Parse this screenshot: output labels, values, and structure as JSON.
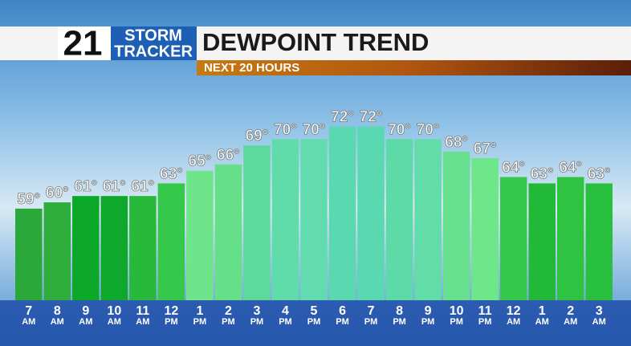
{
  "header": {
    "logo_number": "21",
    "logo_line1": "STORM",
    "logo_line2": "TRACKER"
  },
  "chart_data": {
    "type": "bar",
    "title": "DEWPOINT TREND",
    "subtitle": "NEXT 20 HOURS",
    "categories": [
      "7 AM",
      "8 AM",
      "9 AM",
      "10 AM",
      "11 AM",
      "12 PM",
      "1 PM",
      "2 PM",
      "3 PM",
      "4 PM",
      "5 PM",
      "6 PM",
      "7 PM",
      "8 PM",
      "9 PM",
      "10 PM",
      "11 PM",
      "12 AM",
      "1 AM",
      "2 AM",
      "3 AM"
    ],
    "values": [
      59,
      60,
      61,
      61,
      61,
      63,
      65,
      66,
      69,
      70,
      70,
      72,
      72,
      70,
      70,
      68,
      67,
      64,
      63,
      64,
      63
    ],
    "value_labels": [
      "59°",
      "60°",
      "61°",
      "61°",
      "61°",
      "63°",
      "65°",
      "66°",
      "69°",
      "70°",
      "70°",
      "72°",
      "72°",
      "70°",
      "70°",
      "68°",
      "67°",
      "64°",
      "63°",
      "64°",
      "63°"
    ],
    "colors": [
      "#2aa83a",
      "#2fae3e",
      "#0ca82a",
      "#0ea82c",
      "#28b83a",
      "#35c84a",
      "#6ee58a",
      "#66e088",
      "#5cd99c",
      "#60dcaa",
      "#62dcae",
      "#5ad8b0",
      "#5ad8b0",
      "#5cdaa8",
      "#62dca8",
      "#66e08e",
      "#6ee68a",
      "#35c84a",
      "#22b838",
      "#2ec442",
      "#28c03e"
    ],
    "ylim": [
      44.5,
      75
    ]
  }
}
